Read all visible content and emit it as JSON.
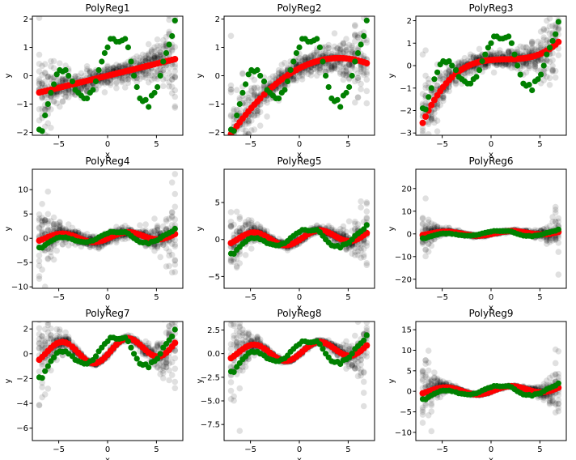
{
  "figure": {
    "background": "#ffffff"
  },
  "style": {
    "sample_color": "#000000",
    "sample_opacity": 0.12,
    "mean_color": "#ff0000",
    "observed_color": "#008000"
  },
  "chart_data": [
    {
      "type": "scatter",
      "title": "PolyReg1",
      "xlabel": "x",
      "ylabel": "y",
      "xlim": [
        -7.7,
        7.7
      ],
      "ylim": [
        -2.1,
        2.1
      ],
      "xticks": [
        -5,
        0,
        5
      ],
      "yticks": [
        -2,
        -1,
        0,
        1,
        2
      ],
      "degree": 1,
      "spread_center": 0.18,
      "spread_edge": 0.25,
      "outlier_scale": 0
    },
    {
      "type": "scatter",
      "title": "PolyReg2",
      "xlabel": "x",
      "ylabel": "y",
      "xlim": [
        -7.7,
        7.7
      ],
      "ylim": [
        -2.1,
        2.1
      ],
      "xticks": [
        -5,
        0,
        5
      ],
      "yticks": [
        -2,
        -1,
        0,
        1,
        2
      ],
      "degree": 2,
      "spread_center": 0.2,
      "spread_edge": 0.35,
      "outlier_scale": 0.4
    },
    {
      "type": "scatter",
      "title": "PolyReg3",
      "xlabel": "x",
      "ylabel": "y",
      "xlim": [
        -7.7,
        7.7
      ],
      "ylim": [
        -3.1,
        2.2
      ],
      "xticks": [
        -5,
        0,
        5
      ],
      "yticks": [
        -3,
        -2,
        -1,
        0,
        1,
        2
      ],
      "degree": 3,
      "spread_center": 0.2,
      "spread_edge": 0.35,
      "outlier_scale": 1.0
    },
    {
      "type": "scatter",
      "title": "PolyReg4",
      "xlabel": "x",
      "ylabel": "y",
      "xlim": [
        -7.7,
        7.7
      ],
      "ylim": [
        -10.3,
        14.2
      ],
      "xticks": [
        -5,
        0,
        5
      ],
      "yticks": [
        -10,
        -5,
        0,
        5,
        10
      ],
      "degree": 4,
      "spread_center": 0.6,
      "spread_edge": 1.0,
      "outlier_scale": 4.5
    },
    {
      "type": "scatter",
      "title": "PolyReg5",
      "xlabel": "x",
      "ylabel": "y",
      "xlim": [
        -7.7,
        7.7
      ],
      "ylim": [
        -6.6,
        9.5
      ],
      "xticks": [
        -5,
        0,
        5
      ],
      "yticks": [
        -5,
        0,
        5
      ],
      "degree": 5,
      "spread_center": 0.25,
      "spread_edge": 0.6,
      "outlier_scale": 2.5
    },
    {
      "type": "scatter",
      "title": "PolyReg6",
      "xlabel": "x",
      "ylabel": "y",
      "xlim": [
        -7.7,
        7.7
      ],
      "ylim": [
        -24,
        28.5
      ],
      "xticks": [
        -5,
        0,
        5
      ],
      "yticks": [
        -20,
        -10,
        0,
        10,
        20
      ],
      "degree": 6,
      "spread_center": 0.3,
      "spread_edge": 1.0,
      "outlier_scale": 8
    },
    {
      "type": "scatter",
      "title": "PolyReg7",
      "xlabel": "x",
      "ylabel": "y",
      "xlim": [
        -7.7,
        7.7
      ],
      "ylim": [
        -7.0,
        2.6
      ],
      "xticks": [
        -5,
        0,
        5
      ],
      "yticks": [
        -6,
        -4,
        -2,
        0,
        2
      ],
      "degree": 7,
      "spread_center": 0.1,
      "spread_edge": 0.6,
      "outlier_scale": 2.0
    },
    {
      "type": "scatter",
      "title": "PolyReg8",
      "xlabel": "x",
      "ylabel": "y",
      "xlim": [
        -7.7,
        7.7
      ],
      "ylim": [
        -9.2,
        3.4
      ],
      "xticks": [
        -5,
        0,
        5
      ],
      "yticks": [
        -7.5,
        -5.0,
        -2.5,
        0.0,
        2.5
      ],
      "degree": 8,
      "spread_center": 0.1,
      "spread_edge": 0.8,
      "outlier_scale": 3.0
    },
    {
      "type": "scatter",
      "title": "PolyReg9",
      "xlabel": "x",
      "ylabel": "y",
      "xlim": [
        -7.7,
        7.7
      ],
      "ylim": [
        -12,
        17
      ],
      "xticks": [
        -5,
        0,
        5
      ],
      "yticks": [
        -10,
        -5,
        0,
        5,
        10,
        15
      ],
      "degree": 9,
      "spread_center": 0.1,
      "spread_edge": 1.0,
      "outlier_scale": 5.0
    }
  ],
  "observed": {
    "x": [
      -7.0,
      -6.7,
      -6.4,
      -6.1,
      -5.8,
      -5.5,
      -5.2,
      -4.9,
      -4.6,
      -4.3,
      -4.0,
      -3.6,
      -3.3,
      -3.0,
      -2.7,
      -2.4,
      -2.1,
      -1.8,
      -1.5,
      -1.2,
      -0.9,
      -0.6,
      -0.3,
      0.0,
      0.3,
      0.6,
      0.9,
      1.2,
      1.5,
      1.8,
      2.1,
      2.4,
      2.7,
      3.0,
      3.3,
      3.6,
      3.9,
      4.2,
      4.5,
      4.8,
      5.1,
      5.4,
      5.7,
      6.0,
      6.3,
      6.6,
      6.9
    ],
    "y": [
      -1.9,
      -1.95,
      -1.4,
      -1.0,
      -0.6,
      -0.3,
      0.05,
      0.2,
      0.15,
      0.2,
      0.0,
      -0.2,
      -0.5,
      -0.6,
      -0.7,
      -0.8,
      -0.8,
      -0.6,
      -0.5,
      -0.2,
      0.2,
      0.5,
      0.8,
      1.0,
      1.3,
      1.3,
      1.2,
      1.2,
      1.25,
      1.3,
      1.0,
      0.5,
      0.0,
      -0.4,
      -0.8,
      -0.9,
      -0.85,
      -1.1,
      -0.7,
      -0.6,
      -0.4,
      0.0,
      0.5,
      0.8,
      1.1,
      1.4,
      1.95
    ]
  }
}
